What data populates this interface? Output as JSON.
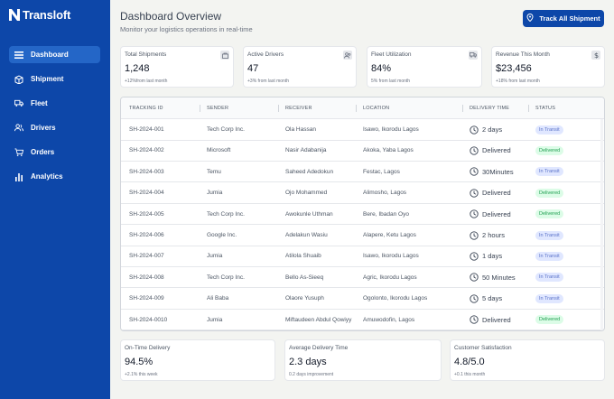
{
  "brand": {
    "name": "Transloft"
  },
  "sidebar": {
    "items": [
      {
        "label": "Dashboard",
        "icon": "list-icon",
        "active": true
      },
      {
        "label": "Shipment",
        "icon": "package-icon",
        "active": false
      },
      {
        "label": "Fleet",
        "icon": "truck-icon",
        "active": false
      },
      {
        "label": "Drivers",
        "icon": "users-icon",
        "active": false
      },
      {
        "label": "Orders",
        "icon": "cart-icon",
        "active": false
      },
      {
        "label": "Analytics",
        "icon": "bar-chart-icon",
        "active": false
      }
    ]
  },
  "header": {
    "title": "Dashboard Overview",
    "subtitle": "Monitor your logistics operations in real-time",
    "track_button": "Track All Shipment"
  },
  "stats": [
    {
      "label": "Total Shipments",
      "value": "1,248",
      "note": "+12%from last month",
      "icon": "box-icon"
    },
    {
      "label": "Active Drivers",
      "value": "47",
      "note": "+3% from last month",
      "icon": "users-icon"
    },
    {
      "label": "Fleet Utilization",
      "value": "84%",
      "note": "5% from last month",
      "icon": "truck-icon"
    },
    {
      "label": "Revenue This Month",
      "value": "$23,456",
      "note": "+18% from last month",
      "icon": "dollar-icon"
    }
  ],
  "table": {
    "columns": [
      "TRACKING ID",
      "SENDER",
      "RECEIVER",
      "LOCATION",
      "DELIVERY TIME",
      "STATUS"
    ],
    "rows": [
      {
        "id": "SH-2024-001",
        "sender": "Tech Corp Inc.",
        "receiver": "Ola Hassan",
        "location": "Isawo, Ikorodu Lagos",
        "time": "2 days",
        "status": "In Transit"
      },
      {
        "id": "SH-2024-002",
        "sender": "Microsoft",
        "receiver": "Nasir Adabanija",
        "location": "Akoka, Yaba Lagos",
        "time": "Delivered",
        "status": "Delivered"
      },
      {
        "id": "SH-2024-003",
        "sender": "Temu",
        "receiver": "Saheed Adedokun",
        "location": "Festac, Lagos",
        "time": "30Minutes",
        "status": "In Transit"
      },
      {
        "id": "SH-2024-004",
        "sender": "Jumia",
        "receiver": "Ojo Mohammed",
        "location": "Alimosho, Lagos",
        "time": "Delivered",
        "status": "Delivered"
      },
      {
        "id": "SH-2024-005",
        "sender": "Tech Corp Inc.",
        "receiver": "Awokunle Uthman",
        "location": "Bere, Ibadan Oyo",
        "time": "Delivered",
        "status": "Delivered"
      },
      {
        "id": "SH-2024-006",
        "sender": "Google Inc.",
        "receiver": "Adelakun Wasiu",
        "location": "Alapere, Ketu Lagos",
        "time": "2 hours",
        "status": "In Transit"
      },
      {
        "id": "SH-2024-007",
        "sender": "Jumia",
        "receiver": "Atilola Shuaib",
        "location": "Isawo, Ikorodu Lagos",
        "time": "1 days",
        "status": "In Transit"
      },
      {
        "id": "SH-2024-008",
        "sender": "Tech Corp Inc.",
        "receiver": "Bello As-Sieeq",
        "location": "Agric, Ikorodu Lagos",
        "time": "50 Minutes",
        "status": "In Transit"
      },
      {
        "id": "SH-2024-009",
        "sender": "Ali Baba",
        "receiver": "Olaore Yusuph",
        "location": "Ogolonto, Ikorodu Lagos",
        "time": "5 days",
        "status": "In Transit"
      },
      {
        "id": "SH-2024-0010",
        "sender": "Jumia",
        "receiver": "Miftaudeen Abdul Qowiyy",
        "location": "Amuwodofin, Lagos",
        "time": "Delivered",
        "status": "Delivered"
      }
    ]
  },
  "metrics": [
    {
      "label": "On-Time Delivery",
      "value": "94.5%",
      "note": "+2.1% this week"
    },
    {
      "label": "Average Delivery Time",
      "value": "2.3 days",
      "note": "0.2 days improvement"
    },
    {
      "label": "Customer Satisfaction",
      "value": "4.8/5.0",
      "note": "+0.1 this month"
    }
  ],
  "colors": {
    "primary": "#0d47a9",
    "transit_badge": "#e0e7ff",
    "delivered_badge": "#dcfce7"
  }
}
